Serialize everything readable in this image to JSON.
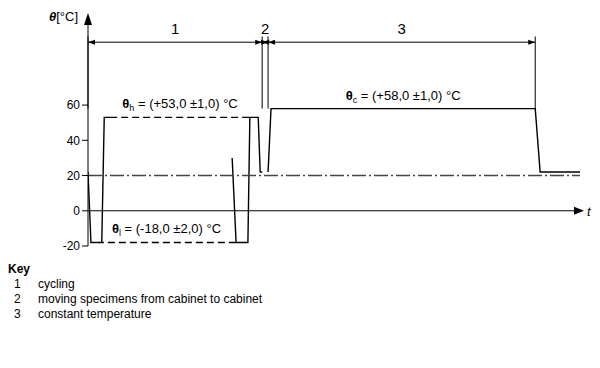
{
  "chart_data": {
    "type": "line",
    "y_label": "θ[°C]",
    "x_label": "t",
    "x_axis_at": 0,
    "xlim": [
      0,
      100
    ],
    "ylim": [
      -20,
      110
    ],
    "yticks": [
      -20,
      0,
      20,
      40,
      60
    ],
    "tick_labels": "y",
    "grid": false,
    "series": [
      {
        "x": [
          0,
          0.6,
          1.8
        ],
        "values": [
          22,
          -18,
          -18
        ],
        "color": "#000000",
        "line_style": "solid"
      },
      {
        "x": [
          2.8,
          3.3,
          4.5
        ],
        "values": [
          -18,
          53,
          53
        ],
        "color": "#000000",
        "line_style": "solid"
      },
      {
        "x": [
          29.3,
          30.1,
          32.5,
          32.9,
          34.6,
          35.0,
          35.4
        ],
        "values": [
          30,
          -18,
          -18,
          53,
          53,
          22,
          22
        ],
        "color": "#000000",
        "line_style": "solid"
      },
      {
        "x": [
          36.6,
          37.2,
          90.9,
          91.9,
          100
        ],
        "values": [
          22,
          58,
          58,
          22,
          22
        ],
        "color": "#000000",
        "line_style": "solid",
        "label": "θc = (+58,0 ±1,0) °C"
      },
      {
        "x": [
          4.5,
          32.9
        ],
        "values": [
          53,
          53
        ],
        "color": "#000000",
        "line_style": "dashed",
        "label": "θh = (+53,0 ±1,0) °C"
      },
      {
        "x": [
          1.8,
          30.1
        ],
        "values": [
          -18,
          -18
        ],
        "color": "#000000",
        "line_style": "dashed",
        "label": "θl = (-18,0 ±2,0) °C"
      },
      {
        "x": [
          0,
          100
        ],
        "values": [
          20,
          20
        ],
        "color": "#444444",
        "line_style": "dashdot"
      }
    ],
    "segments": [
      {
        "label": "1",
        "text": "cycling",
        "start": 0,
        "end": 35.4
      },
      {
        "label": "2",
        "text": "moving specimens from cabinet to cabinet",
        "start": 35.4,
        "end": 36.6
      },
      {
        "label": "3",
        "text": "constant temperature",
        "start": 36.6,
        "end": 90.9
      }
    ],
    "key_title": "Key"
  }
}
